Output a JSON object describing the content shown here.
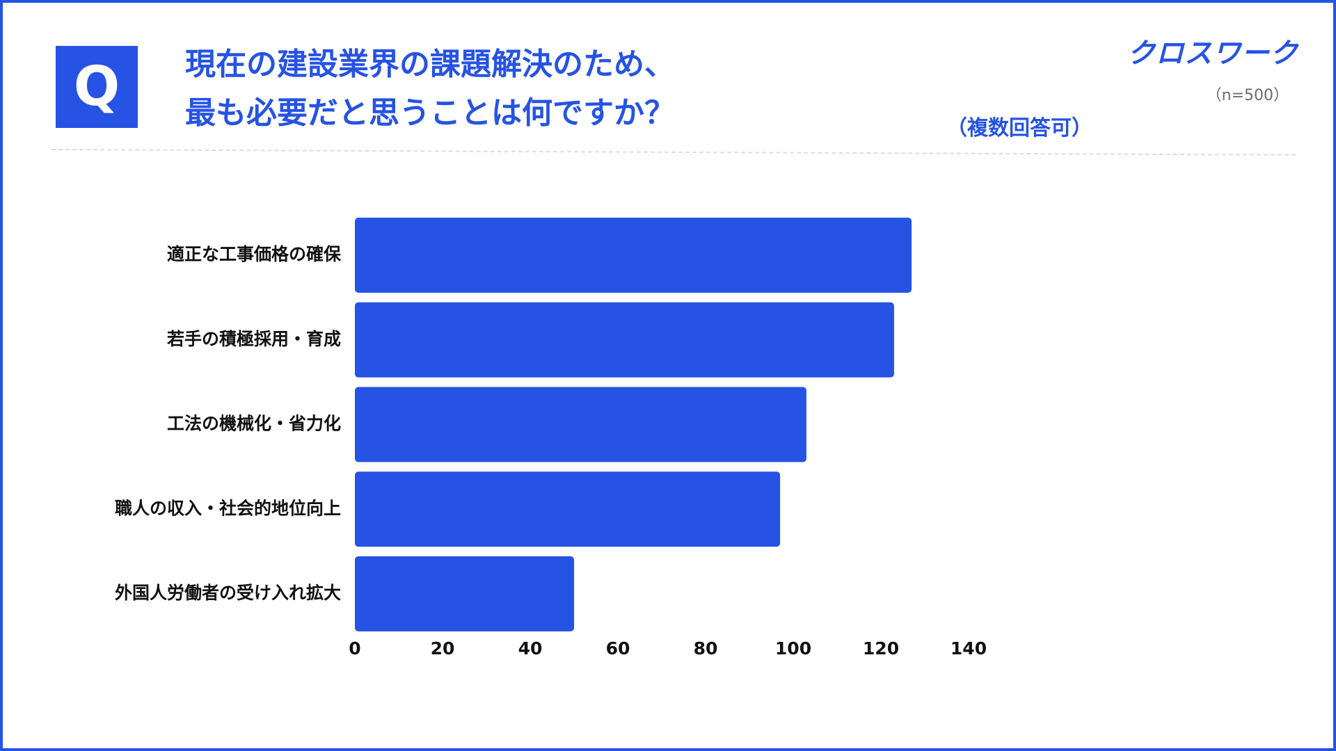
{
  "header": {
    "q_mark": "Q",
    "title_line1": "現在の建設業界の課題解決のため、",
    "title_line2": "最も必要だと思うことは何ですか？",
    "sample_size": "（n=500）",
    "multiple_answers": "（複数回答可）",
    "brand_logo": "クロスワーク"
  },
  "colors": {
    "accent": "#2653e4",
    "bar": "#2653e4",
    "text": "#111111",
    "muted": "#6b6b6b"
  },
  "chart_data": {
    "type": "bar",
    "orientation": "horizontal",
    "categories": [
      "適正な工事価格の確保",
      "若手の積極採用・育成",
      "工法の機械化・省力化",
      "職人の収入・社会的地位向上",
      "外国人労働者の受け入れ拡大"
    ],
    "values": [
      127,
      123,
      103,
      97,
      50
    ],
    "xlim": [
      0,
      140
    ],
    "xticks": [
      0,
      20,
      40,
      60,
      80,
      100,
      120,
      140
    ],
    "grid": false,
    "legend": "none"
  }
}
